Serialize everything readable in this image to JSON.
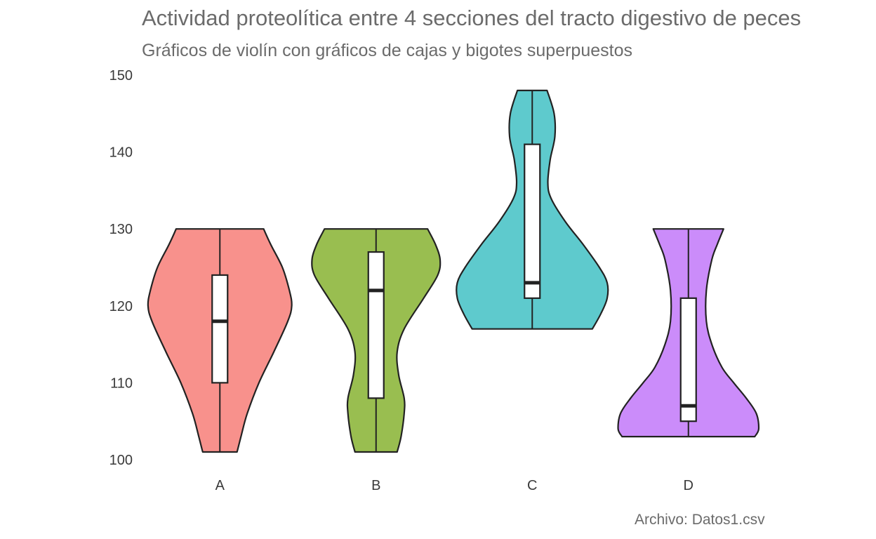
{
  "chart_data": {
    "type": "violin",
    "title": "Actividad proteolítica entre 4 secciones del tracto digestivo de peces",
    "subtitle": "Gráficos de violín con gráficos de cajas y bigotes superpuestos",
    "caption": "Archivo: Datos1.csv",
    "xlabel": "",
    "ylabel": "",
    "ylim": [
      100,
      150
    ],
    "yticks": [
      100,
      110,
      120,
      130,
      140,
      150
    ],
    "grid": false,
    "legend": "none",
    "categories": [
      "A",
      "B",
      "C",
      "D"
    ],
    "groups": [
      {
        "category": "A",
        "color": "#f8918c",
        "min": 101,
        "q1": 110,
        "median": 118,
        "q3": 124,
        "max": 130,
        "violin_half_width": [
          [
            101,
            0.22
          ],
          [
            103,
            0.27
          ],
          [
            106,
            0.35
          ],
          [
            110,
            0.5
          ],
          [
            114,
            0.69
          ],
          [
            118,
            0.87
          ],
          [
            120,
            0.92
          ],
          [
            122,
            0.89
          ],
          [
            125,
            0.8
          ],
          [
            128,
            0.65
          ],
          [
            130,
            0.56
          ]
        ]
      },
      {
        "category": "B",
        "color": "#99be50",
        "min": 101,
        "q1": 108,
        "median": 122,
        "q3": 127,
        "max": 130,
        "violin_half_width": [
          [
            101,
            0.27
          ],
          [
            103,
            0.32
          ],
          [
            106,
            0.36
          ],
          [
            108,
            0.36
          ],
          [
            111,
            0.29
          ],
          [
            114,
            0.27
          ],
          [
            117,
            0.36
          ],
          [
            121,
            0.61
          ],
          [
            124,
            0.79
          ],
          [
            126,
            0.82
          ],
          [
            128,
            0.76
          ],
          [
            130,
            0.66
          ]
        ]
      },
      {
        "category": "C",
        "color": "#5ecacd",
        "min": 117,
        "q1": 121,
        "median": 123,
        "q3": 141,
        "max": 148,
        "violin_half_width": [
          [
            117,
            0.77
          ],
          [
            119,
            0.88
          ],
          [
            121,
            0.96
          ],
          [
            123,
            0.96
          ],
          [
            125,
            0.86
          ],
          [
            128,
            0.65
          ],
          [
            131,
            0.42
          ],
          [
            134,
            0.24
          ],
          [
            136,
            0.2
          ],
          [
            139,
            0.23
          ],
          [
            142,
            0.29
          ],
          [
            145,
            0.28
          ],
          [
            148,
            0.19
          ]
        ]
      },
      {
        "category": "D",
        "color": "#cb8cfa",
        "min": 103,
        "q1": 105,
        "median": 107,
        "q3": 121,
        "max": 130,
        "violin_half_width": [
          [
            103,
            0.85
          ],
          [
            104,
            0.9
          ],
          [
            106,
            0.87
          ],
          [
            108,
            0.74
          ],
          [
            110,
            0.58
          ],
          [
            112,
            0.43
          ],
          [
            115,
            0.3
          ],
          [
            118,
            0.23
          ],
          [
            122,
            0.23
          ],
          [
            126,
            0.3
          ],
          [
            128,
            0.37
          ],
          [
            130,
            0.45
          ]
        ]
      }
    ]
  }
}
